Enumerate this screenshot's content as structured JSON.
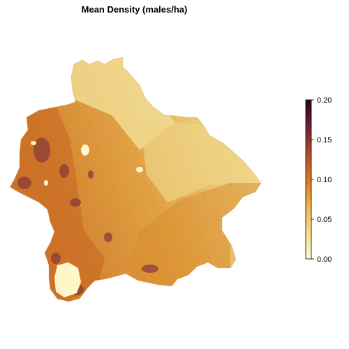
{
  "map": {
    "title": "Mean Density (males/ha)"
  },
  "legend": {
    "min": 0.0,
    "max": 0.2,
    "ticks": [
      "0.00",
      "0.05",
      "0.10",
      "0.15",
      "0.20"
    ],
    "tick_values": [
      0.0,
      0.05,
      0.1,
      0.15,
      0.2
    ],
    "colors": [
      "#fffbd3",
      "#f7df8a",
      "#eeb64a",
      "#d9781f",
      "#ad4a2b",
      "#6e2236",
      "#2a0714"
    ]
  },
  "colors": {
    "north_pale": "#f5e49a",
    "northeast": "#edd27a",
    "center": "#e6ac4a",
    "west": "#d78a2a",
    "southeast": "#d9932e",
    "hotspot": "#8a3b3a",
    "cold_spot": "#fff7c8"
  }
}
